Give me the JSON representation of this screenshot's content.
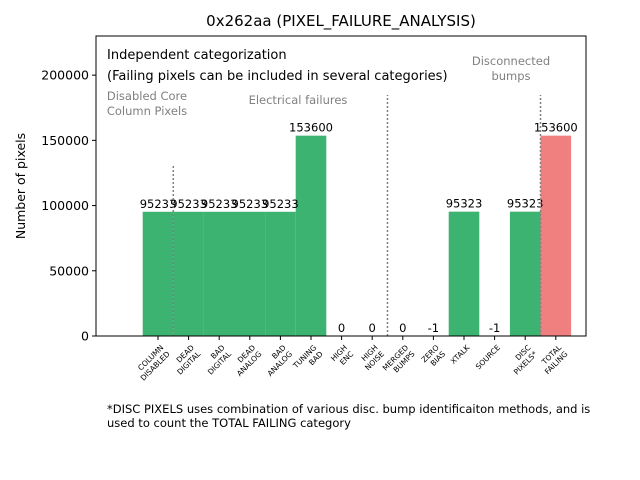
{
  "chart_data": {
    "type": "bar",
    "title": "0x262aa (PIXEL_FAILURE_ANALYSIS)",
    "xlabel": "",
    "ylabel": "Number of pixels",
    "ylim": [
      0,
      230000
    ],
    "yticks": [
      0,
      50000,
      100000,
      150000,
      200000
    ],
    "grid": false,
    "categories": [
      "COLUMN\nDISABLED",
      "DEAD\nDIGITAL",
      "BAD\nDIGITAL",
      "DEAD\nANALOG",
      "BAD\nANALOG",
      "TUNING\nBAD",
      "HIGH\nENC",
      "HIGH\nNOISE",
      "MERGED\nBUMPS",
      "ZERO\nBIAS",
      "XTALK",
      "SOURCE",
      "DISC\nPIXELS*",
      "TOTAL\nFAILING"
    ],
    "values": [
      95233,
      95233,
      95233,
      95233,
      95233,
      153600,
      0,
      0,
      0,
      -1,
      95323,
      -1,
      95323,
      153600
    ],
    "data_labels": [
      "95233",
      "95233",
      "95233",
      "95233",
      "95233",
      "153600",
      "0",
      "0",
      "0",
      "-1",
      "95323",
      "-1",
      "95323",
      "153600"
    ],
    "colors": {
      "default": "#3cb371",
      "total": "#f08080",
      "divider": "#808080",
      "group_label": "#808080"
    },
    "annotations": {
      "box_line1": "Independent categorization",
      "box_line2": "(Failing pixels can be included in several categories)",
      "groups": [
        {
          "lines": [
            "Disabled Core",
            "Column Pixels"
          ],
          "after_index": 0
        },
        {
          "lines": [
            "Electrical failures"
          ],
          "after_index": 7
        },
        {
          "lines": [
            "Disconnected",
            "bumps"
          ],
          "after_index": 12
        }
      ]
    },
    "footnote": "*DISC PIXELS uses combination of various disc. bump identificaiton methods, and is\nused to count the TOTAL FAILING category"
  }
}
